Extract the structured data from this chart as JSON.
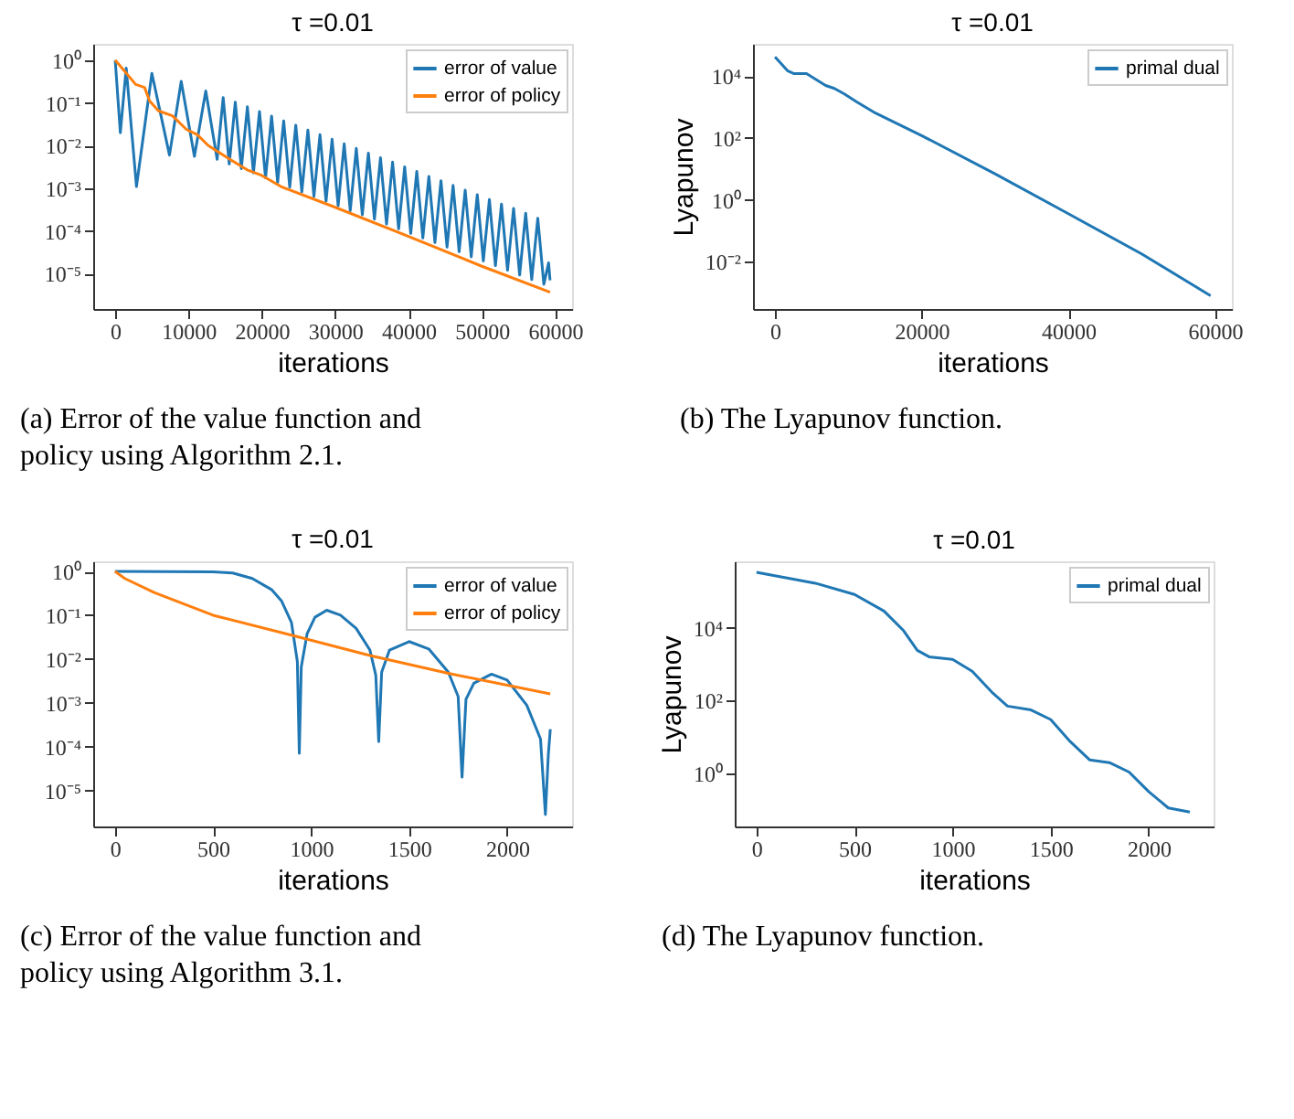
{
  "chart_data": [
    {
      "type": "line",
      "title": "τ =0.01",
      "xlabel": "iterations",
      "xlim": [
        -3000,
        62300
      ],
      "xticks": [
        0,
        10000,
        20000,
        30000,
        40000,
        50000,
        60000
      ],
      "log": "y",
      "ylim": [
        1.5e-06,
        2.4
      ],
      "yticks": [
        {
          "value": 1,
          "label": "10⁰"
        },
        {
          "value": 0.1,
          "label": "10⁻¹"
        },
        {
          "value": 0.01,
          "label": "10⁻²"
        },
        {
          "value": 0.001,
          "label": "10⁻³"
        },
        {
          "value": 0.0001,
          "label": "10⁻⁴"
        },
        {
          "value": 1e-05,
          "label": "10⁻⁵"
        }
      ],
      "grid": false,
      "legend": "top right",
      "marker": "none",
      "line_style": "solid",
      "annotations": [
        "(a) Error of the value function and policy using Algorithm 2.1."
      ],
      "series": [
        {
          "name": "error of value",
          "color": "#1f77b4",
          "x": [
            0,
            700,
            1500,
            2900,
            5000,
            7400,
            9000,
            10800,
            12350,
            13900,
            14725,
            15550,
            16375,
            17200,
            18025,
            18850,
            19675,
            20500,
            21325,
            22150,
            22975,
            23800,
            24625,
            25450,
            26275,
            27100,
            27925,
            28750,
            29575,
            30400,
            31225,
            32050,
            32875,
            33700,
            34525,
            35350,
            36175,
            37000,
            37825,
            38650,
            39475,
            40300,
            41125,
            41950,
            42775,
            43600,
            44425,
            45250,
            46075,
            46900,
            47725,
            48550,
            49375,
            50200,
            51025,
            51850,
            52675,
            53500,
            54325,
            55150,
            55975,
            56800,
            57625,
            58450,
            59100,
            59300
          ],
          "values": [
            1,
            0.02,
            0.65,
            0.0011,
            0.49,
            0.006,
            0.32,
            0.0056,
            0.19,
            0.0048,
            0.133,
            0.0037,
            0.104,
            0.0029,
            0.081,
            0.0023,
            0.063,
            0.00176,
            0.049,
            0.00137,
            0.038,
            0.00107,
            0.03,
            0.00083,
            0.023,
            0.00065,
            0.018,
            0.0005,
            0.0141,
            0.00039,
            0.011,
            0.0003,
            0.0086,
            0.00024,
            0.0067,
            0.00019,
            0.0052,
            0.000146,
            0.0041,
            0.000113,
            0.0032,
            8.8e-05,
            0.0025,
            6.9e-05,
            0.0019,
            5.4e-05,
            0.0015,
            4.2e-05,
            0.00117,
            3.3e-05,
            0.00091,
            2.5e-05,
            0.00071,
            2e-05,
            0.00055,
            1.55e-05,
            0.00043,
            1.21e-05,
            0.00034,
            9.4e-06,
            0.00026,
            7.3e-06,
            0.0002,
            5.7e-06,
            1.8e-05,
            7e-06
          ]
        },
        {
          "name": "error of policy",
          "color": "#ff7f0e",
          "x": [
            0,
            2800,
            4000,
            4700,
            5900,
            7800,
            9700,
            11200,
            12700,
            15000,
            18000,
            20000,
            22600,
            30000,
            40000,
            50000,
            59300
          ],
          "values": [
            1,
            0.27,
            0.23,
            0.11,
            0.065,
            0.05,
            0.024,
            0.018,
            0.01,
            0.0056,
            0.0027,
            0.002,
            0.0011,
            0.00036,
            7.5e-05,
            1.5e-05,
            3.7e-06
          ]
        }
      ]
    },
    {
      "type": "line",
      "title": "τ =0.01",
      "xlabel": "iterations",
      "ylabel": "Lyapunov",
      "xlim": [
        -3000,
        62300
      ],
      "xticks": [
        0,
        20000,
        40000,
        60000
      ],
      "log": "y",
      "ylim": [
        0.0003,
        110000
      ],
      "yticks": [
        {
          "value": 10000,
          "label": "10⁴"
        },
        {
          "value": 100,
          "label": "10²"
        },
        {
          "value": 1,
          "label": "10⁰"
        },
        {
          "value": 0.01,
          "label": "10⁻²"
        }
      ],
      "grid": false,
      "legend": "top right",
      "marker": "none",
      "line_style": "solid",
      "annotations": [
        "(b) The Lyapunov function."
      ],
      "series": [
        {
          "name": "primal dual",
          "color": "#1f77b4",
          "x": [
            0,
            1700,
            2600,
            4300,
            6900,
            8100,
            9400,
            11100,
            13700,
            20000,
            30000,
            40000,
            50000,
            59400
          ],
          "values": [
            42000,
            15000,
            12000,
            12000,
            5000,
            4000,
            2700,
            1500,
            640,
            120,
            7,
            0.36,
            0.018,
            0.0008
          ]
        }
      ]
    },
    {
      "type": "line",
      "title": "τ =0.01",
      "xlabel": "iterations",
      "xlim": [
        -111,
        2331
      ],
      "xticks": [
        0,
        500,
        1000,
        1500,
        2000
      ],
      "log": "y",
      "ylim": [
        1.5e-06,
        1.7
      ],
      "yticks": [
        {
          "value": 1,
          "label": "10⁰"
        },
        {
          "value": 0.1,
          "label": "10⁻¹"
        },
        {
          "value": 0.01,
          "label": "10⁻²"
        },
        {
          "value": 0.001,
          "label": "10⁻³"
        },
        {
          "value": 0.0001,
          "label": "10⁻⁴"
        },
        {
          "value": 1e-05,
          "label": "10⁻⁵"
        }
      ],
      "grid": false,
      "legend": "top right",
      "marker": "none",
      "line_style": "solid",
      "annotations": [
        "(c) Error of the value function and policy using Algorithm 3.1."
      ],
      "series": [
        {
          "name": "error of value",
          "color": "#1f77b4",
          "x": [
            0,
            500,
            600,
            700,
            800,
            850,
            900,
            930,
            940,
            950,
            980,
            1020,
            1080,
            1150,
            1230,
            1300,
            1330,
            1345,
            1360,
            1400,
            1500,
            1600,
            1700,
            1750,
            1770,
            1790,
            1830,
            1920,
            2000,
            2100,
            2170,
            2195,
            2210,
            2220
          ],
          "values": [
            1,
            0.98,
            0.92,
            0.69,
            0.38,
            0.21,
            0.068,
            0.0088,
            7e-05,
            0.0066,
            0.038,
            0.09,
            0.13,
            0.1,
            0.05,
            0.016,
            0.0043,
            0.00013,
            0.005,
            0.016,
            0.025,
            0.017,
            0.005,
            0.0014,
            2e-05,
            0.0012,
            0.0028,
            0.0045,
            0.0033,
            0.00088,
            0.00015,
            2.8e-06,
            6.6e-05,
            0.00025
          ]
        },
        {
          "name": "error of policy",
          "color": "#ff7f0e",
          "x": [
            0,
            50,
            200,
            500,
            900,
            1300,
            1700,
            2220
          ],
          "values": [
            1,
            0.69,
            0.33,
            0.1,
            0.035,
            0.012,
            0.0047,
            0.0016
          ]
        }
      ]
    },
    {
      "type": "line",
      "title": "τ =0.01",
      "xlabel": "iterations",
      "ylabel": "Lyapunov",
      "xlim": [
        -111,
        2331
      ],
      "xticks": [
        0,
        500,
        1000,
        1500,
        2000
      ],
      "log": "y",
      "ylim": [
        0.034,
        680000
      ],
      "yticks": [
        {
          "value": 10000,
          "label": "10⁴"
        },
        {
          "value": 100,
          "label": "10²"
        },
        {
          "value": 1,
          "label": "10⁰"
        }
      ],
      "grid": false,
      "legend": "top right",
      "marker": "none",
      "line_style": "solid",
      "annotations": [
        "(d) The Lyapunov function."
      ],
      "series": [
        {
          "name": "primal dual",
          "color": "#1f77b4",
          "x": [
            0,
            300,
            500,
            650,
            750,
            820,
            880,
            1000,
            1100,
            1200,
            1280,
            1400,
            1500,
            1600,
            1700,
            1800,
            1900,
            2000,
            2100,
            2210
          ],
          "values": [
            340000,
            170000,
            83000,
            29000,
            8400,
            2400,
            1600,
            1350,
            640,
            170,
            70,
            55,
            30,
            7.4,
            2.3,
            1.95,
            1.07,
            0.31,
            0.11,
            0.085
          ]
        }
      ]
    }
  ]
}
